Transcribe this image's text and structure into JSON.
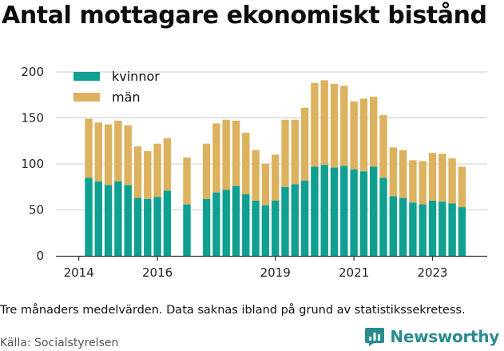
{
  "title": "Antal mottagare ekonomiskt bistånd",
  "note": "Tre månaders medelvärden. Data saknas ibland på grund av statistikssekretess.",
  "source": "Källa: Socialstyrelsen",
  "brand": "Newsworthy",
  "colors": {
    "kvinnor": "#0fa092",
    "man": "#dcb25f",
    "grid": "#cccccc",
    "axis": "#333333"
  },
  "chart_data": {
    "type": "bar",
    "stacked": true,
    "x_unit": "quarter",
    "categories": [
      "2014Q2",
      "2014Q3",
      "2014Q4",
      "2015Q1",
      "2015Q2",
      "2015Q3",
      "2015Q4",
      "2016Q1",
      "2016Q2",
      "2016Q3",
      "2016Q4",
      "2017Q1",
      "2017Q2",
      "2017Q3",
      "2017Q4",
      "2018Q1",
      "2018Q2",
      "2018Q3",
      "2018Q4",
      "2019Q1",
      "2019Q2",
      "2019Q3",
      "2019Q4",
      "2020Q1",
      "2020Q2",
      "2020Q3",
      "2020Q4",
      "2021Q1",
      "2021Q2",
      "2021Q3",
      "2021Q4",
      "2022Q1",
      "2022Q2",
      "2022Q3",
      "2022Q4",
      "2023Q1",
      "2023Q2",
      "2023Q3",
      "2023Q4"
    ],
    "series": [
      {
        "name": "kvinnor",
        "values": [
          85,
          81,
          77,
          81,
          77,
          63,
          62,
          64,
          71,
          null,
          56,
          null,
          62,
          69,
          72,
          76,
          67,
          60,
          55,
          60,
          75,
          78,
          82,
          97,
          99,
          96,
          98,
          94,
          92,
          97,
          85,
          65,
          63,
          58,
          56,
          60,
          59,
          57,
          53
        ]
      },
      {
        "name": "män",
        "values": [
          64,
          64,
          66,
          66,
          65,
          56,
          52,
          58,
          57,
          null,
          51,
          null,
          60,
          75,
          76,
          71,
          67,
          55,
          45,
          50,
          73,
          70,
          79,
          91,
          92,
          91,
          87,
          74,
          79,
          76,
          68,
          53,
          52,
          46,
          47,
          52,
          52,
          49,
          44
        ]
      }
    ],
    "legend": {
      "position": "top-left",
      "entries": [
        "kvinnor",
        "män"
      ]
    },
    "x_ticks": [
      "2014",
      "2016",
      "2019",
      "2021",
      "2023"
    ],
    "y_ticks": [
      0,
      50,
      100,
      150,
      200
    ],
    "ylim": [
      0,
      200
    ],
    "grid": "horizontal"
  }
}
